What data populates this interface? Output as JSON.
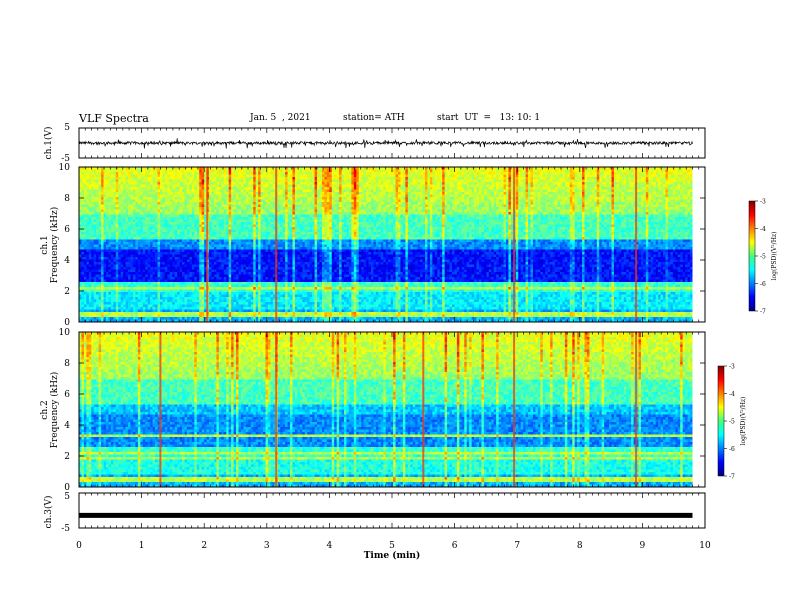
{
  "header": {
    "title": "VLF Spectra",
    "date": "Jan. 5  , 2021",
    "station": "station= ATH",
    "start": "start  UT  =   13: 10: 1"
  },
  "chart_data": [
    {
      "type": "line",
      "title": "",
      "ylabel": "ch.1(V)",
      "xlim": [
        0,
        10
      ],
      "ylim": [
        -5,
        5
      ],
      "ytick_labels": [
        "5",
        "-5"
      ],
      "series": [
        {
          "description_value_mean": 0,
          "typical_range": [
            -1.2,
            0.9
          ]
        }
      ]
    },
    {
      "type": "heatmap",
      "ylabel": "ch.1\nFrequency (kHz)",
      "ylabel_line1": "ch.1",
      "ylabel_line2": "Frequency (kHz)",
      "xlim": [
        0,
        10
      ],
      "ylim": [
        0,
        10
      ],
      "ytick_labels": [
        "0",
        "2",
        "4",
        "6",
        "8",
        "10"
      ],
      "colorbar": {
        "label": "log(PSD)(V²/Hz)",
        "range": [
          -7,
          -3
        ],
        "tick_labels": [
          "-3",
          "-4",
          "-5",
          "-6",
          "-7"
        ]
      }
    },
    {
      "type": "heatmap",
      "ylabel": "ch.2\nFrequency (kHz)",
      "ylabel_line1": "ch.2",
      "ylabel_line2": "Frequency (kHz)",
      "xlim": [
        0,
        10
      ],
      "ylim": [
        0,
        10
      ],
      "ytick_labels": [
        "0",
        "2",
        "4",
        "6",
        "8",
        "10"
      ],
      "colorbar": {
        "label": "log(PSD)(V²/Hz)",
        "range": [
          -7,
          -3
        ],
        "tick_labels": [
          "-3",
          "-4",
          "-5",
          "-6",
          "-7"
        ]
      }
    },
    {
      "type": "line",
      "ylabel": "ch.3(V)",
      "xlim": [
        0,
        10
      ],
      "ylim": [
        -5,
        5
      ],
      "ytick_labels": [
        "5",
        "-5"
      ],
      "series": [
        {
          "value": -1.4
        }
      ]
    }
  ],
  "xaxis": {
    "label": "Time  (min)",
    "tick_labels": [
      "0",
      "1",
      "2",
      "3",
      "4",
      "5",
      "6",
      "7",
      "8",
      "9",
      "10"
    ]
  },
  "colors": {
    "trace": "#000000",
    "background": "#ffffff"
  }
}
